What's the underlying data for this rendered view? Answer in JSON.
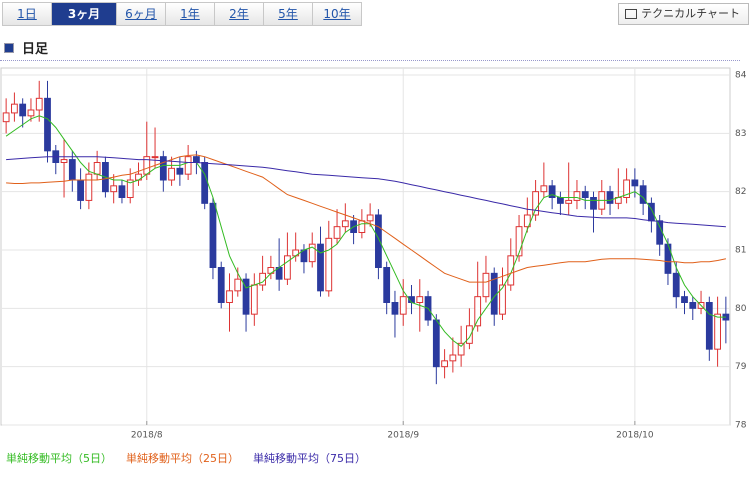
{
  "ui": {
    "tabs": [
      "1日",
      "3ヶ月",
      "6ヶ月",
      "1年",
      "2年",
      "5年",
      "10年"
    ],
    "selected_tab": 1,
    "technical_button": "テクニカルチャート",
    "section_title": "日足"
  },
  "chart_data": {
    "type": "candlestick",
    "up_color": "#dd3333",
    "down_color": "#2b3a9e",
    "grid": true,
    "ylim": [
      78,
      84
    ],
    "yticks": [
      78,
      79,
      80,
      81,
      82,
      83,
      84
    ],
    "categories": [
      null,
      null,
      null,
      null,
      null,
      null,
      null,
      null,
      null,
      null,
      null,
      null,
      null,
      null,
      null,
      null,
      null,
      "2018/8",
      null,
      null,
      null,
      null,
      null,
      null,
      null,
      null,
      null,
      null,
      null,
      null,
      null,
      null,
      null,
      null,
      null,
      null,
      null,
      null,
      null,
      null,
      null,
      null,
      null,
      null,
      null,
      null,
      null,
      null,
      "2018/9",
      null,
      null,
      null,
      null,
      null,
      null,
      null,
      null,
      null,
      null,
      null,
      null,
      null,
      null,
      null,
      null,
      null,
      null,
      null,
      null,
      null,
      null,
      null,
      null,
      null,
      null,
      null,
      "2018/10",
      null,
      null,
      null,
      null,
      null,
      null,
      null,
      null,
      null,
      null,
      null
    ],
    "open": [
      83.2,
      83.35,
      83.5,
      83.3,
      83.4,
      83.6,
      82.7,
      82.5,
      82.55,
      82.2,
      81.85,
      82.3,
      82.5,
      82.0,
      82.1,
      81.9,
      82.2,
      82.3,
      82.6,
      82.6,
      82.2,
      82.4,
      82.3,
      82.6,
      82.5,
      81.8,
      80.7,
      80.1,
      80.3,
      80.5,
      79.9,
      80.4,
      80.6,
      80.7,
      80.5,
      80.9,
      81.0,
      80.8,
      81.1,
      80.3,
      81.2,
      81.4,
      81.5,
      81.3,
      81.5,
      81.6,
      80.7,
      80.1,
      79.9,
      80.2,
      80.1,
      80.2,
      79.8,
      79.0,
      79.1,
      79.2,
      79.4,
      79.7,
      80.2,
      80.6,
      79.9,
      80.4,
      80.9,
      81.4,
      81.6,
      82.0,
      82.1,
      81.9,
      81.8,
      81.85,
      82.0,
      81.9,
      81.7,
      82.0,
      81.8,
      81.9,
      82.2,
      82.1,
      81.8,
      81.5,
      81.1,
      80.6,
      80.2,
      80.1,
      80.0,
      80.1,
      79.3,
      79.9
    ],
    "high": [
      83.6,
      83.7,
      83.6,
      83.6,
      83.9,
      83.9,
      82.8,
      82.9,
      82.7,
      82.4,
      82.5,
      82.7,
      82.6,
      82.3,
      82.2,
      82.4,
      82.5,
      83.2,
      83.1,
      82.7,
      82.6,
      82.6,
      82.8,
      82.7,
      82.6,
      81.9,
      80.8,
      80.6,
      80.7,
      80.6,
      80.6,
      80.9,
      80.9,
      81.2,
      81.3,
      81.3,
      81.1,
      81.3,
      81.4,
      81.5,
      81.7,
      81.8,
      81.6,
      81.7,
      81.8,
      81.7,
      80.8,
      80.3,
      80.5,
      80.4,
      80.5,
      80.3,
      79.9,
      79.3,
      79.5,
      79.7,
      80.0,
      80.8,
      80.9,
      80.7,
      80.7,
      81.2,
      81.6,
      81.9,
      82.2,
      82.5,
      82.2,
      82.0,
      82.5,
      82.2,
      82.1,
      82.0,
      82.2,
      82.1,
      82.4,
      82.4,
      82.4,
      82.2,
      81.9,
      81.6,
      81.2,
      80.8,
      80.3,
      80.2,
      80.3,
      80.2,
      80.2,
      80.2
    ],
    "low": [
      83.0,
      83.2,
      83.1,
      83.2,
      83.2,
      82.5,
      82.3,
      81.9,
      82.0,
      81.7,
      81.7,
      82.2,
      81.9,
      81.8,
      81.8,
      81.8,
      82.1,
      82.2,
      82.4,
      82.0,
      82.1,
      82.1,
      82.2,
      82.3,
      81.7,
      80.5,
      80.0,
      79.6,
      80.2,
      79.6,
      79.7,
      80.3,
      80.5,
      80.3,
      80.4,
      80.8,
      80.6,
      80.7,
      80.2,
      80.2,
      81.1,
      81.3,
      81.1,
      81.2,
      81.4,
      80.5,
      79.9,
      79.5,
      79.7,
      79.9,
      79.6,
      79.7,
      78.7,
      78.8,
      78.9,
      79.0,
      79.3,
      79.6,
      80.1,
      79.7,
      79.8,
      80.3,
      80.8,
      81.3,
      81.5,
      81.9,
      81.7,
      81.6,
      81.6,
      81.7,
      81.7,
      81.3,
      81.6,
      81.6,
      81.7,
      81.8,
      81.9,
      81.6,
      81.3,
      80.9,
      80.4,
      80.0,
      79.9,
      79.8,
      79.9,
      79.1,
      79.0,
      79.4
    ],
    "close": [
      83.35,
      83.5,
      83.3,
      83.4,
      83.6,
      82.7,
      82.5,
      82.55,
      82.2,
      81.85,
      82.3,
      82.5,
      82.0,
      82.1,
      81.9,
      82.2,
      82.3,
      82.6,
      82.6,
      82.2,
      82.4,
      82.3,
      82.6,
      82.5,
      81.8,
      80.7,
      80.1,
      80.3,
      80.5,
      79.9,
      80.4,
      80.6,
      80.7,
      80.5,
      80.9,
      81.0,
      80.8,
      81.1,
      80.3,
      81.2,
      81.4,
      81.5,
      81.3,
      81.5,
      81.6,
      80.7,
      80.1,
      79.9,
      80.2,
      80.1,
      80.2,
      79.8,
      79.0,
      79.1,
      79.2,
      79.4,
      79.7,
      80.2,
      80.6,
      79.9,
      80.4,
      80.9,
      81.4,
      81.6,
      82.0,
      82.1,
      81.9,
      81.8,
      81.85,
      82.0,
      81.9,
      81.7,
      82.0,
      81.8,
      81.9,
      82.2,
      82.1,
      81.8,
      81.5,
      81.1,
      80.6,
      80.2,
      80.1,
      80.0,
      80.1,
      79.3,
      79.9,
      79.8
    ],
    "series": [
      {
        "name": "単純移動平均（5日）",
        "color": "#33bb22",
        "values": [
          82.95,
          83.05,
          83.15,
          83.25,
          83.3,
          83.25,
          83.1,
          82.9,
          82.7,
          82.5,
          82.35,
          82.3,
          82.25,
          82.2,
          82.2,
          82.15,
          82.2,
          82.3,
          82.4,
          82.45,
          82.45,
          82.45,
          82.5,
          82.5,
          82.3,
          81.9,
          81.4,
          80.9,
          80.6,
          80.35,
          80.4,
          80.45,
          80.6,
          80.7,
          80.8,
          80.9,
          81.0,
          81.05,
          80.95,
          81.0,
          81.1,
          81.3,
          81.4,
          81.45,
          81.45,
          81.2,
          80.9,
          80.6,
          80.3,
          80.1,
          80.05,
          80.0,
          79.8,
          79.6,
          79.45,
          79.35,
          79.5,
          79.8,
          80.0,
          80.2,
          80.35,
          80.6,
          80.95,
          81.35,
          81.7,
          81.9,
          81.95,
          81.9,
          81.9,
          81.9,
          81.85,
          81.85,
          81.85,
          81.85,
          81.9,
          81.95,
          82.0,
          81.9,
          81.7,
          81.4,
          81.1,
          80.7,
          80.4,
          80.2,
          80.05,
          79.9,
          79.85,
          79.85
        ]
      },
      {
        "name": "単純移動平均（25日）",
        "color": "#e0601a",
        "values": [
          82.15,
          82.14,
          82.14,
          82.15,
          82.15,
          82.16,
          82.17,
          82.18,
          82.2,
          82.2,
          82.2,
          82.2,
          82.22,
          82.25,
          82.28,
          82.3,
          82.35,
          82.4,
          82.45,
          82.5,
          82.55,
          82.6,
          82.62,
          82.63,
          82.6,
          82.55,
          82.5,
          82.45,
          82.4,
          82.35,
          82.3,
          82.25,
          82.15,
          82.05,
          81.95,
          81.9,
          81.85,
          81.8,
          81.75,
          81.7,
          81.65,
          81.6,
          81.55,
          81.5,
          81.45,
          81.4,
          81.3,
          81.2,
          81.1,
          81.0,
          80.9,
          80.8,
          80.7,
          80.6,
          80.55,
          80.5,
          80.45,
          80.45,
          80.45,
          80.5,
          80.55,
          80.6,
          80.65,
          80.7,
          80.72,
          80.74,
          80.76,
          80.78,
          80.8,
          80.8,
          80.8,
          80.82,
          80.84,
          80.85,
          80.85,
          80.85,
          80.85,
          80.84,
          80.83,
          80.82,
          80.8,
          80.8,
          80.78,
          80.78,
          80.8,
          80.8,
          80.82,
          80.85
        ]
      },
      {
        "name": "単純移動平均（75日）",
        "color": "#3a2aa8",
        "values": [
          82.55,
          82.56,
          82.57,
          82.58,
          82.59,
          82.6,
          82.6,
          82.6,
          82.6,
          82.6,
          82.6,
          82.6,
          82.59,
          82.58,
          82.57,
          82.56,
          82.55,
          82.55,
          82.54,
          82.53,
          82.52,
          82.51,
          82.5,
          82.5,
          82.49,
          82.48,
          82.47,
          82.46,
          82.45,
          82.44,
          82.43,
          82.42,
          82.4,
          82.38,
          82.36,
          82.34,
          82.32,
          82.3,
          82.29,
          82.28,
          82.27,
          82.26,
          82.25,
          82.24,
          82.23,
          82.22,
          82.2,
          82.18,
          82.15,
          82.12,
          82.09,
          82.06,
          82.03,
          82.0,
          81.97,
          81.94,
          81.91,
          81.88,
          81.85,
          81.82,
          81.79,
          81.76,
          81.73,
          81.7,
          81.68,
          81.66,
          81.64,
          81.62,
          81.6,
          81.58,
          81.57,
          81.56,
          81.55,
          81.55,
          81.55,
          81.55,
          81.54,
          81.52,
          81.5,
          81.49,
          81.47,
          81.46,
          81.45,
          81.44,
          81.43,
          81.42,
          81.41,
          81.4
        ]
      }
    ]
  }
}
